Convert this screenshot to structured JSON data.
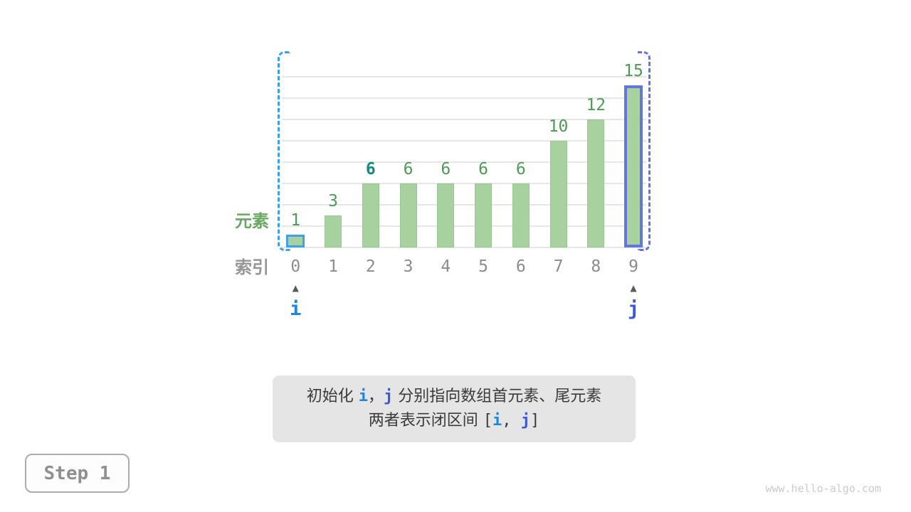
{
  "figure": {
    "element_axis_label": "元素",
    "index_axis_label": "索引"
  },
  "chart_data": {
    "type": "bar",
    "categories": [
      "0",
      "1",
      "2",
      "3",
      "4",
      "5",
      "6",
      "7",
      "8",
      "9"
    ],
    "values": [
      1,
      3,
      6,
      6,
      6,
      6,
      6,
      10,
      12,
      15
    ],
    "title": "",
    "xlabel": "索引",
    "ylabel": "元素",
    "ylim": [
      0,
      16
    ],
    "grid_step": 2,
    "grid": true,
    "legend": "none",
    "bar_fill": "#A8D1A0",
    "bar_edge": "#98C793",
    "value_label_color": "#4E9B55",
    "emphasized_value_index": 2,
    "emphasized_value_color": "#168A7D",
    "index_label_color": "#8C8C8C",
    "highlighted_bars": [
      {
        "index": 0,
        "border_color": "#3FA0EA"
      },
      {
        "index": 9,
        "border_color": "#6276DE"
      }
    ],
    "interval_brackets": {
      "left_color": "#3FA0EA",
      "right_color": "#6276DE",
      "style": "dashed"
    }
  },
  "pointers": [
    {
      "label": "i",
      "index": 0,
      "color": "#1E86DC"
    },
    {
      "label": "j",
      "index": 9,
      "color": "#3C5AD7"
    }
  ],
  "caption": {
    "lines": [
      {
        "segments": [
          {
            "text": "初始化 ",
            "style": "plain"
          },
          {
            "text": "i",
            "style": "i"
          },
          {
            "text": "，",
            "style": "plain"
          },
          {
            "text": "j",
            "style": "j"
          },
          {
            "text": " 分别指向数组首元素、尾元素",
            "style": "plain"
          }
        ]
      },
      {
        "segments": [
          {
            "text": "两者表示闭区间 ",
            "style": "plain"
          },
          {
            "text": "[",
            "style": "mono"
          },
          {
            "text": "i",
            "style": "i"
          },
          {
            "text": ", ",
            "style": "mono"
          },
          {
            "text": "j",
            "style": "j"
          },
          {
            "text": "]",
            "style": "mono"
          }
        ]
      }
    ]
  },
  "step_button": {
    "label": "Step 1"
  },
  "watermark": "www.hello-algo.com"
}
